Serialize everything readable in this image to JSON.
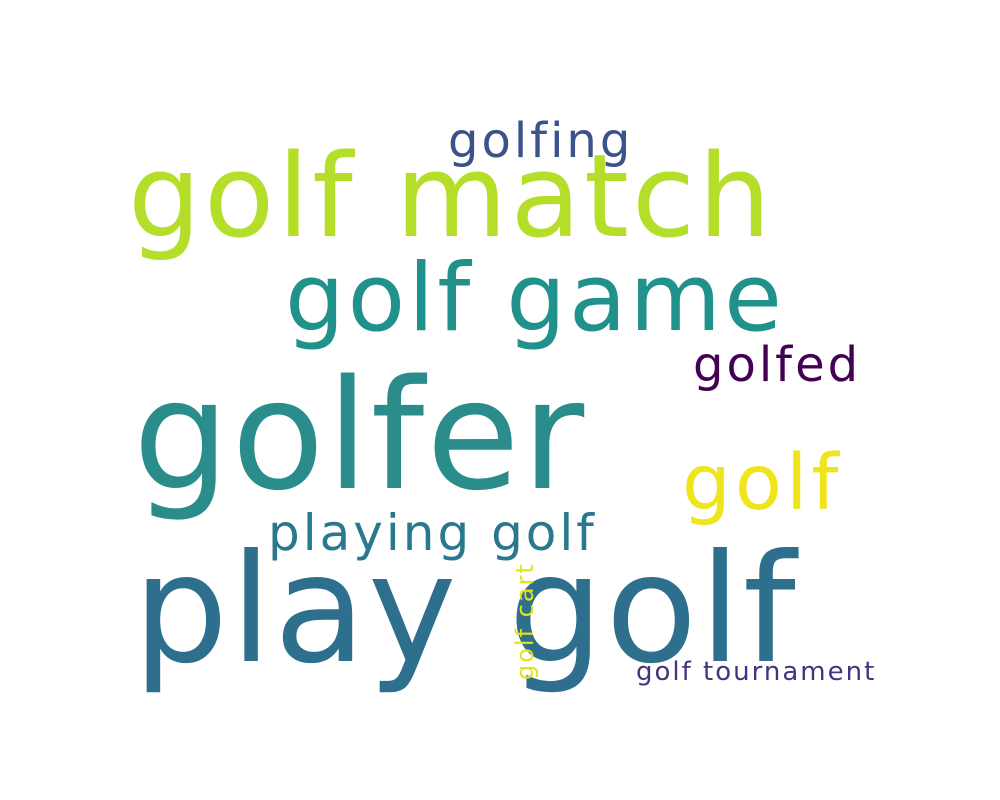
{
  "words": [
    {
      "text": "golfer",
      "color": "#2b8c8c"
    },
    {
      "text": "play golf",
      "color": "#2f6f8e"
    },
    {
      "text": "golf match",
      "color": "#b5de2b"
    },
    {
      "text": "golf game",
      "color": "#21918c"
    },
    {
      "text": "golf",
      "color": "#f0e51d"
    },
    {
      "text": "playing golf",
      "color": "#2a788e"
    },
    {
      "text": "golfing",
      "color": "#3b528b"
    },
    {
      "text": "golfed",
      "color": "#440154"
    },
    {
      "text": "golf tournament",
      "color": "#46337e"
    },
    {
      "text": "golf cart",
      "color": "#e3e418"
    }
  ]
}
